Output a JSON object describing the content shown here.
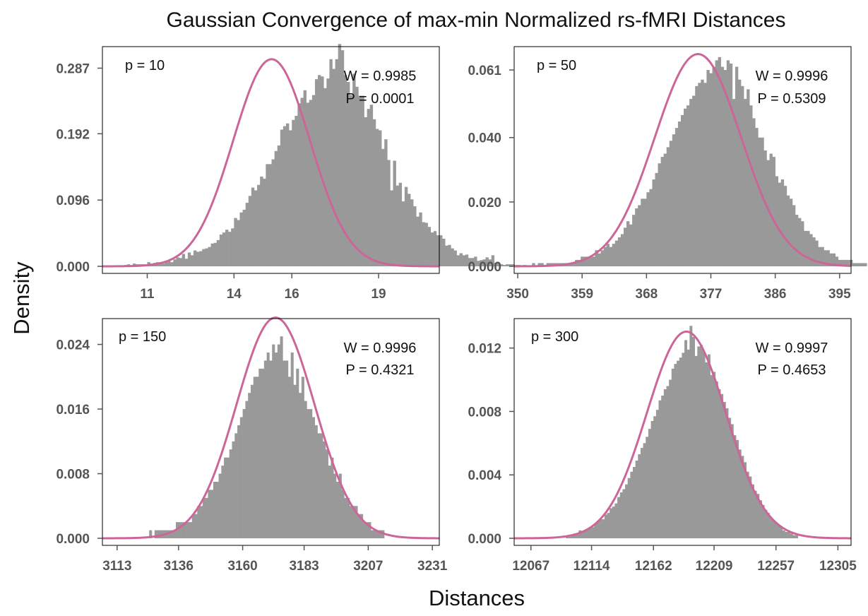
{
  "figure": {
    "title": "Gaussian Convergence of max-min Normalized rs-fMRI Distances",
    "xlabel": "Distances",
    "ylabel": "Density",
    "colors": {
      "bars": "#999999",
      "curve": "#cc6699",
      "frame": "#000000",
      "ticks": "#555555"
    }
  },
  "chart_data": [
    {
      "type": "bar",
      "label": "p = 10",
      "stats": {
        "W": "W = 0.9985",
        "P": "P = 0.0001"
      },
      "xlim": [
        9.45,
        21.1
      ],
      "ylim": [
        0,
        0.31
      ],
      "xticks": [
        11,
        14,
        16,
        19
      ],
      "xtick_labels": [
        "11",
        "14",
        "16",
        "19"
      ],
      "yticks": [
        0.0,
        0.096,
        0.192,
        0.287
      ],
      "ytick_labels": [
        "0.000",
        "0.096",
        "0.192",
        "0.287"
      ],
      "fit": {
        "mean": 15.3,
        "sd": 1.33
      },
      "bins": {
        "start": 10.2,
        "width": 0.1,
        "values": [
          0.002,
          0.003,
          0.001,
          0.004,
          0.003,
          0.003,
          0.003,
          0.002,
          0.006,
          0.004,
          0.005,
          0.006,
          0.005,
          0.004,
          0.007,
          0.009,
          0.006,
          0.01,
          0.013,
          0.012,
          0.018,
          0.011,
          0.02,
          0.016,
          0.023,
          0.021,
          0.022,
          0.025,
          0.026,
          0.028,
          0.033,
          0.034,
          0.038,
          0.046,
          0.049,
          0.053,
          0.05,
          0.055,
          0.07,
          0.067,
          0.078,
          0.082,
          0.092,
          0.102,
          0.114,
          0.11,
          0.118,
          0.13,
          0.127,
          0.148,
          0.148,
          0.155,
          0.167,
          0.175,
          0.198,
          0.203,
          0.207,
          0.197,
          0.212,
          0.218,
          0.236,
          0.244,
          0.255,
          0.237,
          0.241,
          0.248,
          0.271,
          0.277,
          0.275,
          0.258,
          0.272,
          0.3,
          0.286,
          0.3,
          0.322,
          0.313,
          0.277,
          0.267,
          0.248,
          0.279,
          0.26,
          0.247,
          0.247,
          0.216,
          0.228,
          0.234,
          0.213,
          0.199,
          0.197,
          0.17,
          0.184,
          0.154,
          0.11,
          0.153,
          0.117,
          0.121,
          0.094,
          0.115,
          0.105,
          0.097,
          0.087,
          0.072,
          0.078,
          0.064,
          0.063,
          0.057,
          0.049,
          0.051,
          0.045,
          0.045,
          0.04,
          0.03,
          0.031,
          0.026,
          0.023,
          0.016,
          0.019,
          0.016,
          0.017,
          0.012,
          0.012,
          0.014,
          0.008,
          0.009,
          0.01,
          0.013,
          0.01,
          0.016,
          0.005,
          0.005,
          0.003,
          0.002,
          0.003,
          0.003,
          0.003,
          0.002,
          0.002,
          0.001,
          0.002,
          0.001
        ]
      }
    },
    {
      "type": "bar",
      "label": "p = 50",
      "stats": {
        "W": "W = 0.9996",
        "P": "P = 0.5309"
      },
      "xlim": [
        349.5,
        396.6
      ],
      "ylim": [
        0,
        0.0665
      ],
      "xticks": [
        350,
        359,
        368,
        377,
        386,
        395
      ],
      "xtick_labels": [
        "350",
        "359",
        "368",
        "377",
        "386",
        "395"
      ],
      "yticks": [
        0.0,
        0.02,
        0.04,
        0.061
      ],
      "ytick_labels": [
        "0.000",
        "0.020",
        "0.040",
        "0.061"
      ],
      "fit": {
        "mean": 375.2,
        "sd": 6.05
      },
      "bins": {
        "start": 350.4,
        "width": 0.4,
        "values": [
          0.0,
          0.0,
          0.0,
          0.0,
          0.001,
          0.0,
          0.001,
          0.001,
          0.0,
          0.001,
          0.001,
          0.001,
          0.001,
          0.001,
          0.001,
          0.001,
          0.001,
          0.001,
          0.001,
          0.002,
          0.002,
          0.003,
          0.003,
          0.003,
          0.003,
          0.003,
          0.005,
          0.004,
          0.005,
          0.006,
          0.007,
          0.006,
          0.007,
          0.008,
          0.009,
          0.01,
          0.012,
          0.014,
          0.013,
          0.016,
          0.018,
          0.019,
          0.021,
          0.021,
          0.023,
          0.024,
          0.027,
          0.029,
          0.032,
          0.034,
          0.035,
          0.037,
          0.039,
          0.041,
          0.043,
          0.045,
          0.047,
          0.049,
          0.05,
          0.052,
          0.053,
          0.056,
          0.057,
          0.058,
          0.057,
          0.061,
          0.06,
          0.062,
          0.064,
          0.065,
          0.062,
          0.061,
          0.064,
          0.063,
          0.052,
          0.062,
          0.058,
          0.056,
          0.052,
          0.055,
          0.05,
          0.046,
          0.043,
          0.04,
          0.04,
          0.036,
          0.033,
          0.035,
          0.034,
          0.028,
          0.026,
          0.027,
          0.025,
          0.022,
          0.021,
          0.019,
          0.016,
          0.015,
          0.014,
          0.011,
          0.011,
          0.01,
          0.009,
          0.008,
          0.006,
          0.006,
          0.005,
          0.005,
          0.004,
          0.004,
          0.003,
          0.002,
          0.002,
          0.002,
          0.002,
          0.002,
          0.001,
          0.001,
          0.001,
          0.001,
          0.001,
          0.0
        ]
      }
    },
    {
      "type": "bar",
      "label": "p = 150",
      "stats": {
        "W": "W = 0.9996",
        "P": "P = 0.4321"
      },
      "xlim": [
        3107.5,
        3233.6
      ],
      "ylim": [
        0,
        0.0265
      ],
      "xticks": [
        3113,
        3136,
        3160,
        3183,
        3207,
        3231
      ],
      "xtick_labels": [
        "3113",
        "3136",
        "3160",
        "3183",
        "3207",
        "3231"
      ],
      "yticks": [
        0.0,
        0.008,
        0.016,
        0.024
      ],
      "ytick_labels": [
        "0.000",
        "0.008",
        "0.016",
        "0.024"
      ],
      "fit": {
        "mean": 3172.3,
        "sd": 14.6
      },
      "bins": {
        "start": 3120.0,
        "width": 1.0,
        "values": [
          0.0,
          0.0,
          0.0,
          0.0,
          0.0,
          0.001,
          0.0,
          0.001,
          0.001,
          0.001,
          0.001,
          0.001,
          0.001,
          0.001,
          0.001,
          0.002,
          0.002,
          0.002,
          0.002,
          0.002,
          0.002,
          0.003,
          0.003,
          0.004,
          0.004,
          0.005,
          0.005,
          0.006,
          0.006,
          0.007,
          0.007,
          0.008,
          0.009,
          0.01,
          0.01,
          0.011,
          0.012,
          0.013,
          0.014,
          0.015,
          0.016,
          0.017,
          0.018,
          0.019,
          0.02,
          0.02,
          0.021,
          0.021,
          0.022,
          0.023,
          0.022,
          0.024,
          0.023,
          0.024,
          0.025,
          0.022,
          0.022,
          0.02,
          0.023,
          0.019,
          0.021,
          0.018,
          0.02,
          0.017,
          0.016,
          0.016,
          0.015,
          0.014,
          0.013,
          0.013,
          0.012,
          0.011,
          0.009,
          0.01,
          0.008,
          0.007,
          0.008,
          0.006,
          0.005,
          0.005,
          0.004,
          0.004,
          0.004,
          0.003,
          0.003,
          0.002,
          0.002,
          0.002,
          0.001,
          0.001,
          0.001,
          0.001,
          0.001,
          0.0,
          0.0
        ]
      }
    },
    {
      "type": "bar",
      "label": "p = 300",
      "stats": {
        "W": "W = 0.9997",
        "P": "P = 0.4653"
      },
      "xlim": [
        12054,
        12315.2
      ],
      "ylim": [
        0,
        0.0135
      ],
      "xticks": [
        12067,
        12114,
        12162,
        12209,
        12257,
        12305
      ],
      "xtick_labels": [
        "12067",
        "12114",
        "12162",
        "12209",
        "12257",
        "12305"
      ],
      "yticks": [
        0.0,
        0.004,
        0.008,
        0.012
      ],
      "ytick_labels": [
        "0.000",
        "0.004",
        "0.008",
        "0.012"
      ],
      "fit": {
        "mean": 12187.5,
        "sd": 30.6
      },
      "bins": {
        "start": 12094.0,
        "width": 2.0,
        "values": [
          0.0001,
          0.0001,
          0.0002,
          0.0003,
          0.0003,
          0.0005,
          0.0004,
          0.0005,
          0.0006,
          0.0007,
          0.0007,
          0.0009,
          0.0011,
          0.0012,
          0.0012,
          0.0015,
          0.0016,
          0.0019,
          0.002,
          0.0022,
          0.0026,
          0.0029,
          0.0031,
          0.0034,
          0.0038,
          0.0042,
          0.0045,
          0.0049,
          0.0053,
          0.0057,
          0.006,
          0.0064,
          0.0069,
          0.0074,
          0.0077,
          0.0081,
          0.0087,
          0.009,
          0.0094,
          0.0096,
          0.01,
          0.0107,
          0.011,
          0.0112,
          0.0114,
          0.0117,
          0.0125,
          0.0119,
          0.0134,
          0.0127,
          0.0115,
          0.0121,
          0.0122,
          0.0118,
          0.0111,
          0.0116,
          0.0103,
          0.0105,
          0.0099,
          0.0094,
          0.0091,
          0.0086,
          0.0082,
          0.0076,
          0.0072,
          0.0065,
          0.0062,
          0.0056,
          0.0052,
          0.0048,
          0.0042,
          0.0039,
          0.0034,
          0.003,
          0.0028,
          0.0024,
          0.0021,
          0.0018,
          0.0016,
          0.0013,
          0.0011,
          0.001,
          0.0008,
          0.0007,
          0.0005,
          0.0004,
          0.0004,
          0.0003,
          0.0002,
          0.0002
        ]
      }
    }
  ]
}
